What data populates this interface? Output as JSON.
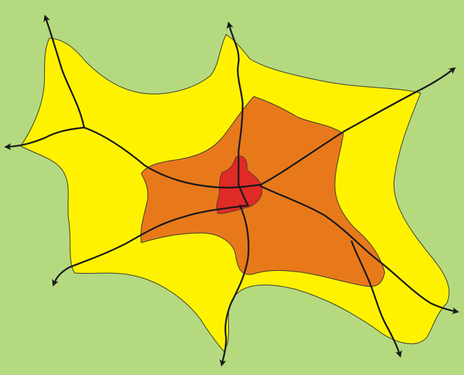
{
  "diagram": {
    "colors": {
      "background": "#b5d97f",
      "outer_zone": "#fff200",
      "middle_zone": "#e8791a",
      "core_zone": "#e02a26",
      "roads": "#1a1a1a",
      "zone_outline": "#333333"
    },
    "zones": [
      "outer-zone",
      "middle-zone",
      "core-zone"
    ],
    "road_count": 9
  }
}
